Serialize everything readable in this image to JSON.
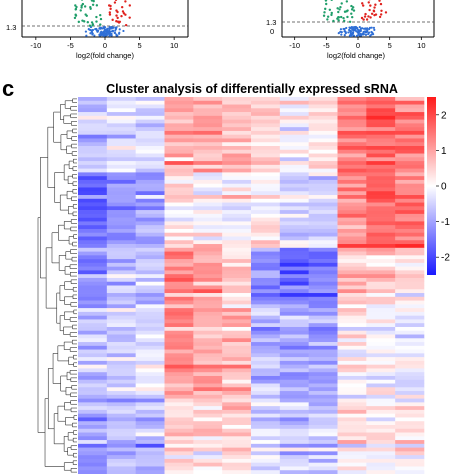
{
  "panel_label": "c",
  "volcano_left": {
    "xlabel": "log2(fold change)",
    "xticks": [
      "-10",
      "-5",
      "0",
      "5",
      "10"
    ],
    "ytick_threshold": "1.3"
  },
  "volcano_right": {
    "xlabel": "log2(fold change)",
    "xticks": [
      "-10",
      "-5",
      "0",
      "5",
      "10"
    ],
    "ytick_threshold": "1.3",
    "ytick_zero": "0"
  },
  "chart_data": {
    "type": "heatmap",
    "title": "Cluster analysis of differentially expressed sRNA",
    "num_columns": 12,
    "num_rows": 100,
    "color_scale": {
      "min": -2.5,
      "max": 2.5,
      "low_color": "#1a1aff",
      "mid_color": "#ffffff",
      "high_color": "#ff1a1a"
    },
    "colorbar_ticks": [
      "2",
      "1",
      "0",
      "-1",
      "-2"
    ],
    "column_mean_by_row_block": [
      {
        "rows": "1-20",
        "means": [
          -0.6,
          -0.4,
          -0.6,
          0.9,
          0.8,
          0.6,
          0.3,
          -0.2,
          0.2,
          1.3,
          1.6,
          1.4
        ]
      },
      {
        "rows": "21-40",
        "means": [
          -1.6,
          -1.1,
          -1.0,
          0.2,
          0.1,
          0.0,
          0.2,
          -0.3,
          -0.4,
          1.4,
          1.8,
          1.6
        ]
      },
      {
        "rows": "41-55",
        "means": [
          -1.3,
          -0.8,
          -0.7,
          1.2,
          1.0,
          0.4,
          -1.3,
          -1.6,
          -1.4,
          0.6,
          0.4,
          0.3
        ]
      },
      {
        "rows": "56-80",
        "means": [
          -0.6,
          -0.4,
          -0.3,
          1.3,
          1.1,
          0.8,
          -0.7,
          -0.9,
          -0.9,
          0.2,
          0.0,
          -0.1
        ]
      },
      {
        "rows": "81-100",
        "means": [
          -1.0,
          -0.8,
          -0.8,
          0.5,
          0.4,
          0.5,
          -0.4,
          -0.6,
          -0.7,
          0.3,
          0.1,
          0.2
        ]
      }
    ],
    "colors": {
      "volcano_up": "#e0221e",
      "volcano_down": "#1f9e6a",
      "volcano_ns": "#2f6fd6",
      "threshold_line": "#444444"
    }
  }
}
